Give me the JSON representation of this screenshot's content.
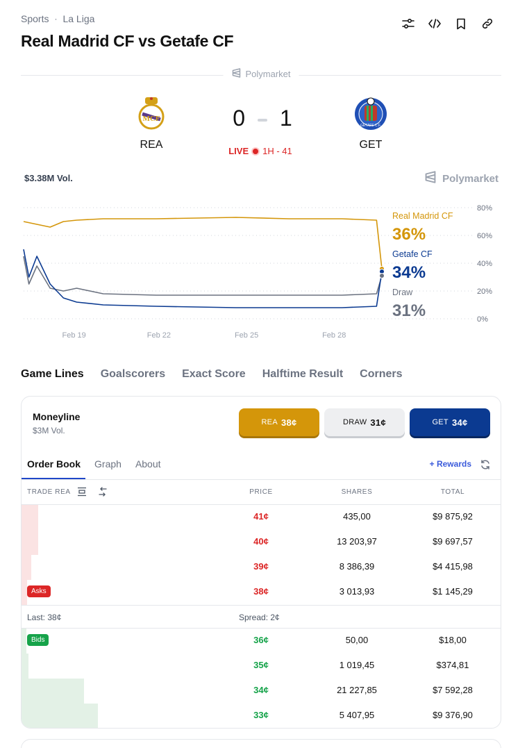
{
  "breadcrumb": {
    "section": "Sports",
    "separator": "·",
    "league": "La Liga"
  },
  "title": "Real Madrid CF vs Getafe CF",
  "toolbar_icons": [
    "sliders-icon",
    "code-icon",
    "bookmark-icon",
    "link-icon"
  ],
  "brand": "Polymarket",
  "match": {
    "home": {
      "abbr": "REA",
      "crest": "real-madrid-crest"
    },
    "away": {
      "abbr": "GET",
      "crest": "getafe-crest"
    },
    "home_score": "0",
    "away_score": "1",
    "status": "LIVE",
    "period": "1H - 41"
  },
  "volume": "$3.38M Vol.",
  "chart_data": {
    "type": "line",
    "x_ticks": [
      "Feb 19",
      "Feb 22",
      "Feb 25",
      "Feb 28"
    ],
    "y_ticks": [
      "80%",
      "60%",
      "40%",
      "20%",
      "0%"
    ],
    "ylim": [
      0,
      80
    ],
    "series": [
      {
        "name": "Real Madrid CF",
        "color": "#d4960a",
        "current": "36%",
        "x": [
          0,
          0.5,
          1,
          1.5,
          2,
          3,
          5,
          8,
          10,
          12,
          13.3,
          13.5
        ],
        "values": [
          70,
          68,
          66,
          70,
          71,
          72,
          72,
          73,
          72,
          72,
          71,
          36
        ]
      },
      {
        "name": "Getafe CF",
        "color": "#0b3a91",
        "current": "34%",
        "x": [
          0,
          0.2,
          0.5,
          1,
          1.5,
          2,
          3,
          5,
          8,
          10,
          12,
          13.3,
          13.5
        ],
        "values": [
          50,
          30,
          45,
          25,
          15,
          12,
          10,
          9,
          8,
          8,
          8,
          9,
          34
        ]
      },
      {
        "name": "Draw",
        "color": "#6b7280",
        "current": "31%",
        "x": [
          0,
          0.2,
          0.5,
          1,
          1.5,
          2,
          3,
          5,
          8,
          10,
          12,
          13.3,
          13.5
        ],
        "values": [
          45,
          25,
          38,
          22,
          20,
          22,
          18,
          17,
          17,
          17,
          17,
          18,
          31
        ]
      }
    ]
  },
  "market_tabs": [
    "Game Lines",
    "Goalscorers",
    "Exact Score",
    "Halftime Result",
    "Corners"
  ],
  "moneyline": {
    "title": "Moneyline",
    "volume": "$3M Vol.",
    "buttons": [
      {
        "label": "REA",
        "price": "38¢"
      },
      {
        "label": "DRAW",
        "price": "31¢"
      },
      {
        "label": "GET",
        "price": "34¢"
      }
    ]
  },
  "detail_tabs": [
    "Order Book",
    "Graph",
    "About"
  ],
  "rewards": "+ Rewards",
  "orderbook": {
    "headers": {
      "trade": "TRADE REA",
      "price": "PRICE",
      "shares": "SHARES",
      "total": "TOTAL"
    },
    "asks": [
      {
        "price": "41¢",
        "shares": "435,00",
        "total": "$9 875,92",
        "depth": 0.035
      },
      {
        "price": "40¢",
        "shares": "13 203,97",
        "total": "$9 697,57",
        "depth": 0.035
      },
      {
        "price": "39¢",
        "shares": "8 386,39",
        "total": "$4 415,98",
        "depth": 0.02
      },
      {
        "price": "38¢",
        "shares": "3 013,93",
        "total": "$1 145,29",
        "depth": 0.012
      }
    ],
    "asks_label": "Asks",
    "last": "Last: 38¢",
    "spread": "Spread: 2¢",
    "bids_label": "Bids",
    "bids": [
      {
        "price": "36¢",
        "shares": "50,00",
        "total": "$18,00",
        "depth": 0.01
      },
      {
        "price": "35¢",
        "shares": "1 019,45",
        "total": "$374,81",
        "depth": 0.015
      },
      {
        "price": "34¢",
        "shares": "21 227,85",
        "total": "$7 592,28",
        "depth": 0.13
      },
      {
        "price": "33¢",
        "shares": "5 407,95",
        "total": "$9 376,90",
        "depth": 0.16
      }
    ]
  }
}
